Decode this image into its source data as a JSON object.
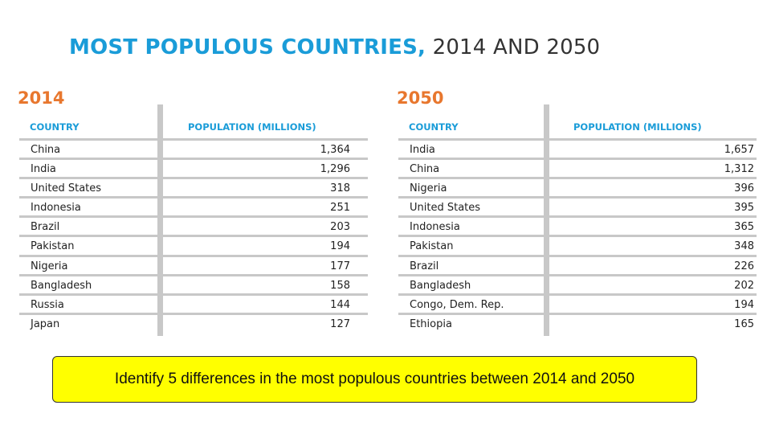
{
  "title": {
    "bold": "MOST POPULOUS COUNTRIES,",
    "light": "2014 AND 2050"
  },
  "tables": [
    {
      "year": "2014",
      "col_country": "COUNTRY",
      "col_population": "POPULATION (MILLIONS)",
      "rows": [
        {
          "country": "China",
          "population": "1,364"
        },
        {
          "country": "India",
          "population": "1,296"
        },
        {
          "country": "United States",
          "population": "318"
        },
        {
          "country": "Indonesia",
          "population": "251"
        },
        {
          "country": "Brazil",
          "population": "203"
        },
        {
          "country": "Pakistan",
          "population": "194"
        },
        {
          "country": "Nigeria",
          "population": "177"
        },
        {
          "country": "Bangladesh",
          "population": "158"
        },
        {
          "country": "Russia",
          "population": "144"
        },
        {
          "country": "Japan",
          "population": "127"
        }
      ]
    },
    {
      "year": "2050",
      "col_country": "COUNTRY",
      "col_population": "POPULATION (MILLIONS)",
      "rows": [
        {
          "country": "India",
          "population": "1,657"
        },
        {
          "country": "China",
          "population": "1,312"
        },
        {
          "country": "Nigeria",
          "population": "396"
        },
        {
          "country": "United States",
          "population": "395"
        },
        {
          "country": "Indonesia",
          "population": "365"
        },
        {
          "country": "Pakistan",
          "population": "348"
        },
        {
          "country": "Brazil",
          "population": "226"
        },
        {
          "country": "Bangladesh",
          "population": "202"
        },
        {
          "country": "Congo, Dem. Rep.",
          "population": "194"
        },
        {
          "country": "Ethiopia",
          "population": "165"
        }
      ]
    }
  ],
  "callout": "Identify 5 differences in the most populous countries between 2014 and 2050",
  "colors": {
    "accent_blue": "#1a9cd8",
    "accent_orange": "#e8772e",
    "callout_bg": "#ffff00",
    "rule_gray": "#c8c8c8"
  }
}
